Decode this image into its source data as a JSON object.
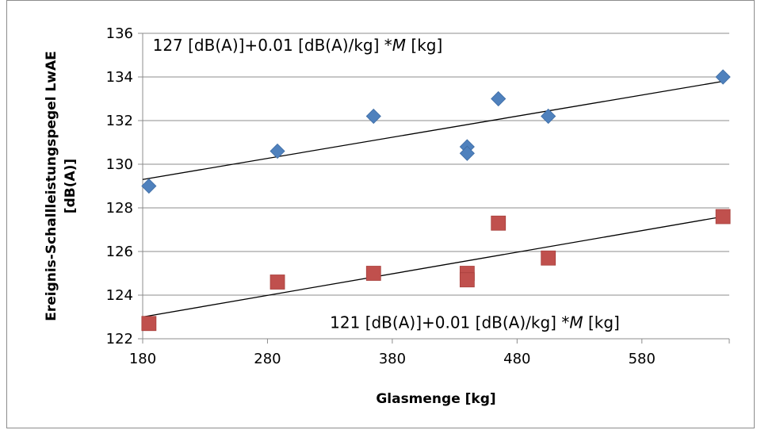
{
  "chart_data": {
    "type": "scatter",
    "xlabel": "Glasmenge [kg]",
    "ylabel_lines": [
      "Ereignis-Schallleistungspegel LwAE",
      "[dB(A)]"
    ],
    "xlim": [
      180,
      650
    ],
    "ylim": [
      122,
      136
    ],
    "xticks": [
      180,
      280,
      380,
      480,
      580
    ],
    "yticks": [
      122,
      124,
      126,
      128,
      130,
      132,
      134,
      136
    ],
    "grid": "horizontal",
    "series": [
      {
        "marker": "diamond",
        "color": "#4f81bd",
        "points": [
          [
            185,
            129.0
          ],
          [
            288,
            130.6
          ],
          [
            365,
            132.2
          ],
          [
            440,
            130.8
          ],
          [
            440,
            130.5
          ],
          [
            465,
            133.0
          ],
          [
            505,
            132.2
          ],
          [
            645,
            134.0
          ]
        ],
        "trend": [
          [
            180,
            129.3
          ],
          [
            645,
            133.8
          ]
        ]
      },
      {
        "marker": "square",
        "color": "#c0504d",
        "points": [
          [
            185,
            122.7
          ],
          [
            288,
            124.6
          ],
          [
            365,
            125.0
          ],
          [
            440,
            125.0
          ],
          [
            440,
            124.7
          ],
          [
            465,
            127.3
          ],
          [
            505,
            125.7
          ],
          [
            645,
            127.6
          ]
        ],
        "trend": [
          [
            180,
            123.0
          ],
          [
            645,
            127.6
          ]
        ]
      }
    ],
    "annotations": [
      {
        "pre": "127 [dB(A)]+0.01 [dB(A)/kg] *",
        "var": "M",
        "post": " [kg]",
        "x": 188,
        "y": 135.2
      },
      {
        "pre": "121 [dB(A)]+0.01 [dB(A)/kg] *",
        "var": "M",
        "post": " [kg]",
        "x": 330,
        "y": 122.5
      }
    ]
  }
}
